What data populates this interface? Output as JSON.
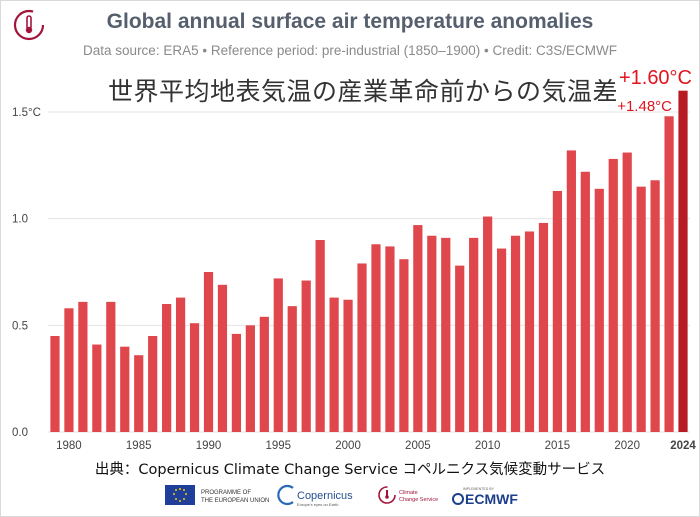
{
  "header": {
    "title": "Global annual surface air temperature anomalies",
    "subtitle": "Data source: ERA5 • Reference period: pre-industrial (1850–1900) • Credit: C3S/ECMWF",
    "japanese_title": "世界平均地表気温の産業革命前からの気温差"
  },
  "annotations": {
    "latest_label": "+1.60°C",
    "previous_label": "+1.48°C"
  },
  "footer": {
    "source_jp": "出典：Copernicus Climate Change Service コペルニクス気候変動サービス",
    "logos": [
      {
        "name": "eu-logo",
        "line1": "PROGRAMME OF",
        "line2": "THE EUROPEAN UNION"
      },
      {
        "name": "copernicus-logo",
        "line1": "Copernicus",
        "line2": "Europe's eyes on Earth"
      },
      {
        "name": "climate-change-service-logo",
        "line1": "Climate",
        "line2": "Change Service"
      },
      {
        "name": "ecmwf-logo",
        "line1": "ECMWF",
        "line2": "IMPLEMENTED BY"
      }
    ]
  },
  "colors": {
    "bar": "#e0474c",
    "bar_latest": "#b71c25",
    "annotation": "#e0141e",
    "grid": "#e4e4e4",
    "title": "#555f6e"
  },
  "chart_data": {
    "type": "bar",
    "title": "Global annual surface air temperature anomalies",
    "x": [
      1979,
      1980,
      1981,
      1982,
      1983,
      1984,
      1985,
      1986,
      1987,
      1988,
      1989,
      1990,
      1991,
      1992,
      1993,
      1994,
      1995,
      1996,
      1997,
      1998,
      1999,
      2000,
      2001,
      2002,
      2003,
      2004,
      2005,
      2006,
      2007,
      2008,
      2009,
      2010,
      2011,
      2012,
      2013,
      2014,
      2015,
      2016,
      2017,
      2018,
      2019,
      2020,
      2021,
      2022,
      2023,
      2024
    ],
    "values": [
      0.45,
      0.58,
      0.61,
      0.41,
      0.61,
      0.4,
      0.36,
      0.45,
      0.6,
      0.63,
      0.51,
      0.75,
      0.69,
      0.46,
      0.5,
      0.54,
      0.72,
      0.59,
      0.71,
      0.9,
      0.63,
      0.62,
      0.79,
      0.88,
      0.87,
      0.81,
      0.97,
      0.92,
      0.91,
      0.78,
      0.91,
      1.01,
      0.86,
      0.92,
      0.94,
      0.98,
      1.13,
      1.32,
      1.22,
      1.14,
      1.28,
      1.31,
      1.15,
      1.18,
      1.48,
      1.6
    ],
    "x_tick_labels": [
      "1980",
      "1985",
      "1990",
      "1995",
      "2000",
      "2005",
      "2010",
      "2015",
      "2020",
      "2024"
    ],
    "y_tick_labels": [
      "0.0",
      "0.5",
      "1.0",
      "1.5°C"
    ],
    "y_ticks": [
      0,
      0.5,
      1.0,
      1.5
    ],
    "ylim": [
      0,
      1.62
    ],
    "grid": true
  }
}
